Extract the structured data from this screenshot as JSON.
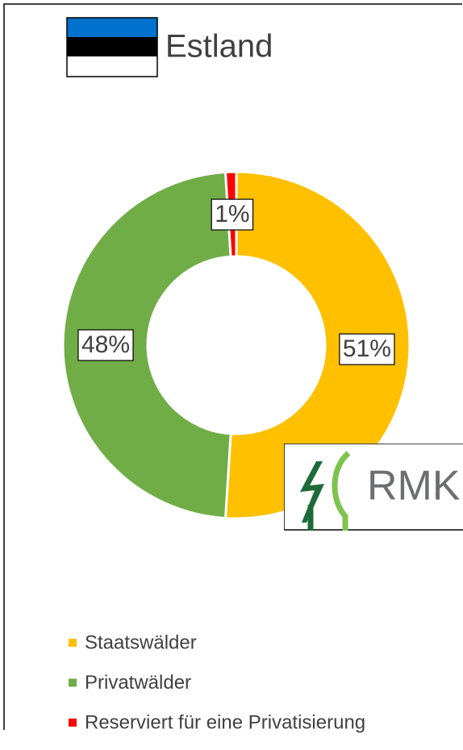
{
  "chart_data": {
    "type": "pie",
    "title": "Estland",
    "categories": [
      "Staatswälder",
      "Privatwälder",
      "Reserviert für eine Privatisierung"
    ],
    "values": [
      51,
      48,
      1
    ],
    "value_labels": [
      "51%",
      "48%",
      "1%"
    ],
    "colors": [
      "#ffc000",
      "#70ad47",
      "#ff0000"
    ],
    "donut": true,
    "legend": "bottom"
  },
  "logo": {
    "text": "RMK"
  }
}
